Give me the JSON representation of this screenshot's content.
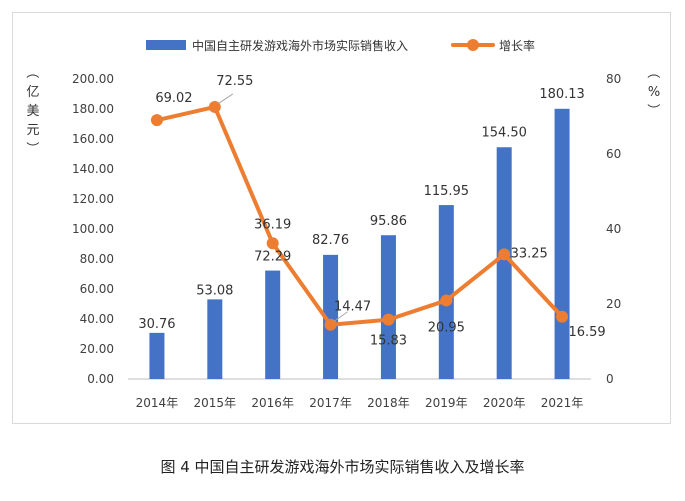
{
  "caption": "图 4 中国自主研发游戏海外市场实际销售收入及增长率",
  "chart_data": {
    "type": "bar",
    "categories": [
      "2014年",
      "2015年",
      "2016年",
      "2017年",
      "2018年",
      "2019年",
      "2020年",
      "2021年"
    ],
    "series": [
      {
        "name": "中国自主研发游戏海外市场实际销售收入",
        "type": "bar",
        "axis": "left",
        "values": [
          30.76,
          53.08,
          72.29,
          82.76,
          95.86,
          115.95,
          154.5,
          180.13
        ],
        "labels": [
          "30.76",
          "53.08",
          "72.29",
          "82.76",
          "95.86",
          "115.95",
          "154.50",
          "180.13"
        ],
        "color": "#4472C4"
      },
      {
        "name": "增长率",
        "type": "line",
        "axis": "right",
        "values": [
          69.02,
          72.55,
          36.19,
          14.47,
          15.83,
          20.95,
          33.25,
          16.59
        ],
        "labels": [
          "69.02",
          "72.55",
          "36.19",
          "14.47",
          "15.83",
          "20.95",
          "33.25",
          "16.59"
        ],
        "color": "#ED7D31"
      }
    ],
    "left_axis": {
      "label": "（亿美元）",
      "ylim": [
        0,
        200
      ],
      "ticks": [
        "0.00",
        "20.00",
        "40.00",
        "60.00",
        "80.00",
        "100.00",
        "120.00",
        "140.00",
        "160.00",
        "180.00",
        "200.00"
      ]
    },
    "right_axis": {
      "label": "（%）",
      "ylim": [
        0,
        80
      ],
      "ticks": [
        "0",
        "20",
        "40",
        "60",
        "80"
      ]
    },
    "legend_position": "top",
    "grid": false
  }
}
